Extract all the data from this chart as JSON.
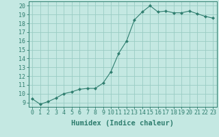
{
  "x": [
    0,
    1,
    2,
    3,
    4,
    5,
    6,
    7,
    8,
    9,
    10,
    11,
    12,
    13,
    14,
    15,
    16,
    17,
    18,
    19,
    20,
    21,
    22,
    23
  ],
  "y": [
    9.4,
    8.8,
    9.1,
    9.5,
    10.0,
    10.2,
    10.5,
    10.6,
    10.6,
    11.2,
    12.5,
    14.6,
    16.0,
    18.4,
    19.3,
    20.0,
    19.3,
    19.4,
    19.2,
    19.2,
    19.4,
    19.1,
    18.8,
    18.6
  ],
  "line_color": "#2e7d6e",
  "marker": "D",
  "marker_size": 2.2,
  "bg_color": "#c4e8e2",
  "grid_color": "#9accc4",
  "xlabel": "Humidex (Indice chaleur)",
  "xlim": [
    -0.5,
    23.5
  ],
  "ylim": [
    8.5,
    20.5
  ],
  "yticks": [
    9,
    10,
    11,
    12,
    13,
    14,
    15,
    16,
    17,
    18,
    19,
    20
  ],
  "xticks": [
    0,
    1,
    2,
    3,
    4,
    5,
    6,
    7,
    8,
    9,
    10,
    11,
    12,
    13,
    14,
    15,
    16,
    17,
    18,
    19,
    20,
    21,
    22,
    23
  ],
  "tick_label_fontsize": 6.0,
  "xlabel_fontsize": 7.5
}
